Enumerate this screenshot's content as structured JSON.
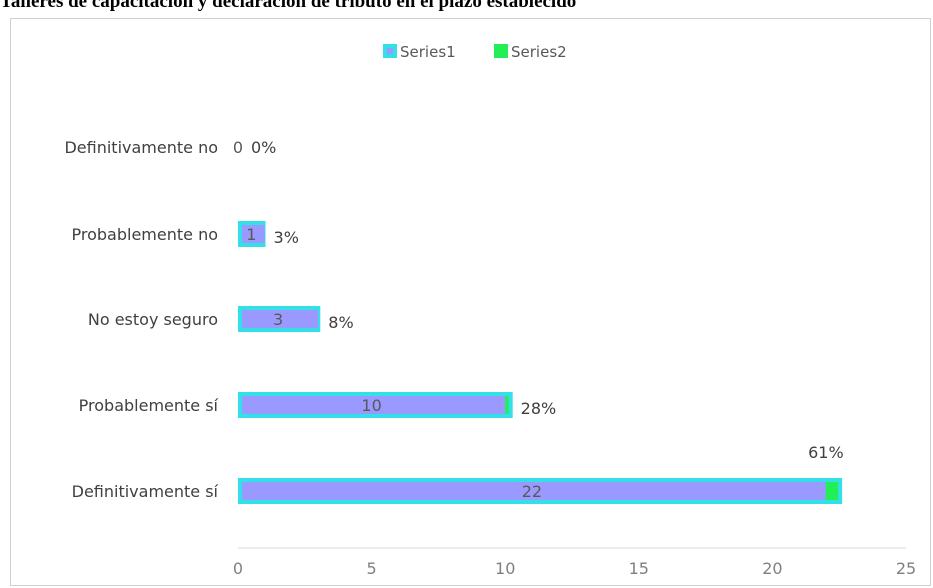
{
  "chart_data": {
    "type": "bar",
    "orientation": "horizontal",
    "stacked": true,
    "title": "Talleres de capacitación y declaración de tributo en el plazo establecido",
    "categories": [
      "Definitivamente sí",
      "Probablemente sí",
      "No estoy seguro",
      "Probablemente no",
      "Definitivamente no"
    ],
    "series": [
      {
        "name": "Series1",
        "values": [
          22,
          10,
          3,
          1,
          0
        ],
        "labels": [
          "22",
          "10",
          "3",
          "1",
          "0"
        ],
        "fill": "#9999ff",
        "border": "#33e0e8"
      },
      {
        "name": "Series2",
        "values": [
          0.61,
          0.28,
          0.08,
          0.03,
          0
        ],
        "labels": [
          "61%",
          "28%",
          "8%",
          "3%",
          "0%"
        ],
        "fill": "#22ee55"
      }
    ],
    "xlim": [
      0,
      25
    ],
    "xticks": [
      "0",
      "5",
      "10",
      "15",
      "20",
      "25"
    ],
    "xlabel": "",
    "ylabel": "",
    "grid": false,
    "legend": "top-center"
  }
}
